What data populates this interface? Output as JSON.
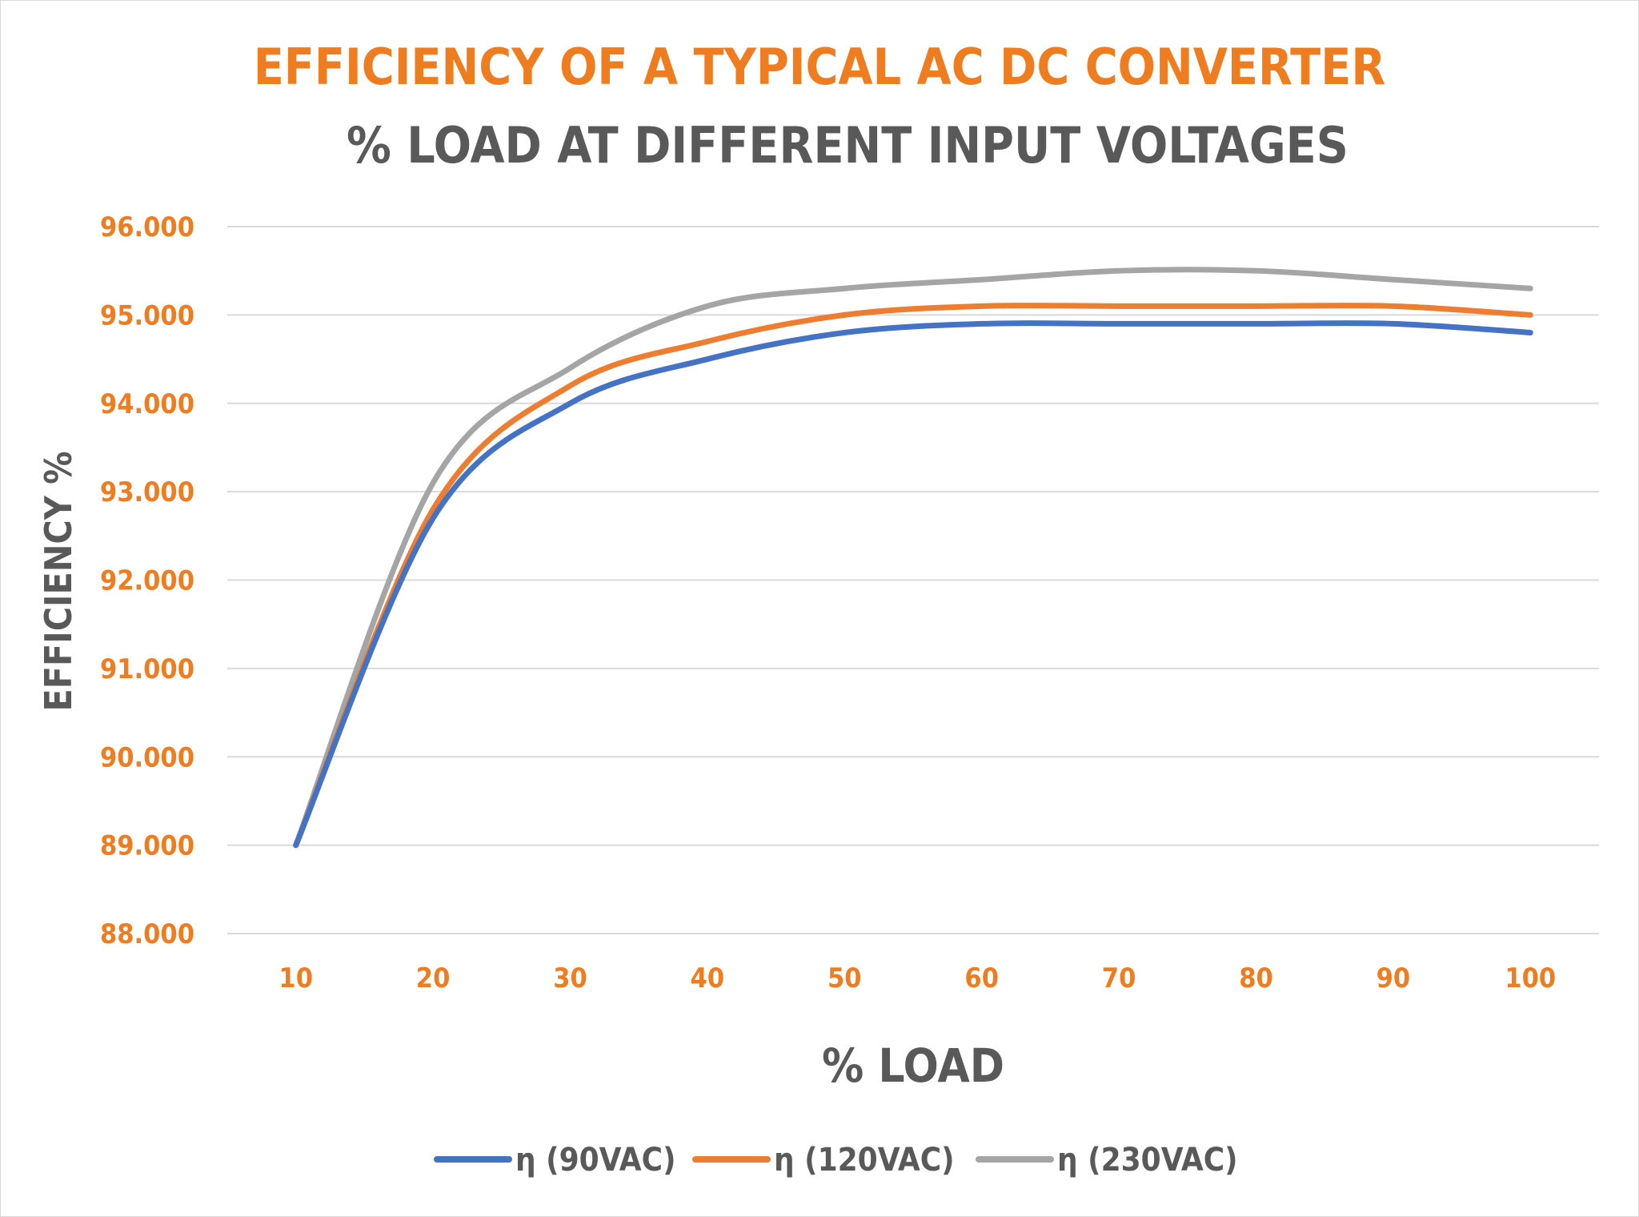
{
  "chart_data": {
    "type": "line",
    "title": "EFFICIENCY OF A TYPICAL AC DC CONVERTER",
    "subtitle": "% LOAD AT DIFFERENT INPUT VOLTAGES",
    "xlabel": "% LOAD",
    "ylabel": "EFFICIENCY %",
    "categories": [
      "10",
      "20",
      "30",
      "40",
      "50",
      "60",
      "70",
      "80",
      "90",
      "100"
    ],
    "x": [
      10,
      20,
      30,
      40,
      50,
      60,
      70,
      80,
      90,
      100
    ],
    "ylim": [
      88,
      96
    ],
    "yticks": [
      "88.000",
      "89.000",
      "90.000",
      "91.000",
      "92.000",
      "93.000",
      "94.000",
      "95.000",
      "96.000"
    ],
    "grid": true,
    "legend_position": "bottom",
    "series": [
      {
        "name": "η (90VAC)",
        "color": "#4472c4",
        "values": [
          89.0,
          92.7,
          94.0,
          94.5,
          94.8,
          94.9,
          94.9,
          94.9,
          94.9,
          94.8
        ]
      },
      {
        "name": "η (120VAC)",
        "color": "#ed7d31",
        "values": [
          89.0,
          92.8,
          94.2,
          94.7,
          95.0,
          95.1,
          95.1,
          95.1,
          95.1,
          95.0
        ]
      },
      {
        "name": "η (230VAC)",
        "color": "#a5a5a5",
        "values": [
          89.0,
          93.1,
          94.4,
          95.1,
          95.3,
          95.4,
          95.5,
          95.5,
          95.4,
          95.3
        ]
      }
    ]
  },
  "colors": {
    "title": "#f07c20",
    "subtitle": "#595959",
    "tick_labels": "#f07c20",
    "axis_titles": "#595959",
    "gridlines": "#d9d9d9"
  }
}
